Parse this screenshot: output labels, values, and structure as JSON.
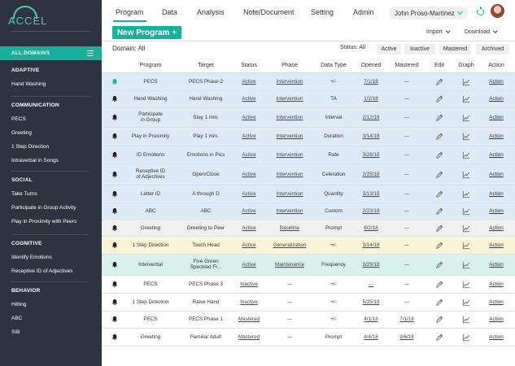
{
  "logo": {
    "text": "ACCEL"
  },
  "sidebar": {
    "all_domains": "ALL DOMAINS",
    "sections": [
      {
        "title": "ADAPTIVE",
        "items": [
          "Hand Washing"
        ]
      },
      {
        "title": "COMMUNICATION",
        "items": [
          "PECS",
          "Greeting",
          "1 Step Direction",
          "Intraverbal in Songs"
        ]
      },
      {
        "title": "SOCIAL",
        "items": [
          "Take Turns",
          "Participate in Group Activity",
          "Play in Proximity with Peers"
        ]
      },
      {
        "title": "COGNITIVE",
        "items": [
          "Identify Emotions",
          "Receptive ID of Adjectives"
        ]
      },
      {
        "title": "BEHAVIOR",
        "items": [
          "Hitting",
          "ABC",
          "SIB"
        ]
      }
    ]
  },
  "nav": {
    "tabs": [
      "Program",
      "Data",
      "Analysis",
      "Note/Document",
      "Setting",
      "Admin"
    ],
    "active_tab": "Program",
    "user_name": "John Proso-Martinez"
  },
  "actions": {
    "new_program": "New Program +",
    "import": "Import",
    "download": "Download"
  },
  "filters": {
    "domain_label": "Domain: All",
    "status_label": "Status: All",
    "buttons": [
      "Active",
      "Inactive",
      "Mastered",
      "Archived"
    ]
  },
  "table": {
    "headers": [
      "Program",
      "Target",
      "Status",
      "Phase",
      "Data Type",
      "Opened",
      "Mastered",
      "Edit",
      "Graph",
      "Action"
    ],
    "rows": [
      {
        "bg": "#dcebf7",
        "bell_color": "#17b09b",
        "program": "PECS",
        "target": "PECS Phase 2",
        "status": "Active",
        "phase": "Intervention",
        "datatype": "+/-",
        "opened": "7/1/18",
        "mastered": "---",
        "action": "Action"
      },
      {
        "bg": "#dcebf7",
        "bell_color": "#222222",
        "program": "Hand Washing",
        "target": "Hand Washing",
        "status": "Active",
        "phase": "Intervention",
        "datatype": "TA",
        "opened": "1/2/18",
        "mastered": "---",
        "action": "Action"
      },
      {
        "bg": "#dcebf7",
        "bell_color": "#222222",
        "program": "Participate\nin Group",
        "target": "Stay 1 min.",
        "status": "Active",
        "phase": "Intervention",
        "datatype": "Interval",
        "opened": "2/12/18",
        "mastered": "---",
        "action": "Action"
      },
      {
        "bg": "#dcebf7",
        "bell_color": "#222222",
        "program": "Play in Proximity",
        "target": "Play 1 min.",
        "status": "Active",
        "phase": "Intervention",
        "datatype": "Duration",
        "opened": "3/14/18",
        "mastered": "---",
        "action": "Action"
      },
      {
        "bg": "#dcebf7",
        "bell_color": "#222222",
        "program": "ID Emotions",
        "target": "Emotions in Pics",
        "status": "Active",
        "phase": "Intervention",
        "datatype": "Rate",
        "opened": "3/28/18",
        "mastered": "---",
        "action": "Action"
      },
      {
        "bg": "#dcebf7",
        "bell_color": "#222222",
        "program": "Receptive ID\nof Adjectives",
        "target": "Open/Close",
        "status": "Active",
        "phase": "Intervention",
        "datatype": "Celeration",
        "opened": "2/25/18",
        "mastered": "---",
        "action": "Action"
      },
      {
        "bg": "#dcebf7",
        "bell_color": "#222222",
        "program": "Letter ID",
        "target": "A through D",
        "status": "Active",
        "phase": "Intervention",
        "datatype": "Quantity",
        "opened": "3/13/18",
        "mastered": "---",
        "action": "Action"
      },
      {
        "bg": "#dcebf7",
        "bell_color": "#222222",
        "program": "ABC",
        "target": "ABC",
        "status": "Active",
        "phase": "Intervention",
        "datatype": "Custom",
        "opened": "2/23/18",
        "mastered": "---",
        "action": "Action"
      },
      {
        "bg": "#f0f0f0",
        "bell_color": "#222222",
        "program": "Greeting",
        "target": "Greeting to Peer",
        "status": "Active",
        "phase": "Baseline",
        "datatype": "Prompt",
        "opened": "6/2/18",
        "mastered": "---",
        "action": "Action"
      },
      {
        "bg": "#faf5d7",
        "bell_color": "#222222",
        "program": "1 Step Direction",
        "target": "Touch Head",
        "status": "Active",
        "phase": "Generalization",
        "datatype": "+/-",
        "opened": "3/14/18",
        "mastered": "---",
        "action": "Action"
      },
      {
        "bg": "#d6f2ea",
        "bell_color": "#222222",
        "program": "Interverbal",
        "target": "Five Green\nSpeckled Fr...",
        "status": "Active",
        "phase": "Maintenance",
        "datatype": "Frequency",
        "opened": "3/29/18",
        "mastered": "---",
        "action": "Action"
      },
      {
        "bg": "#ffffff",
        "bell_color": "#222222",
        "program": "PECS",
        "target": "PECS Phase 3",
        "status": "Inactive",
        "phase": "---",
        "datatype": "+/-",
        "opened": "---",
        "mastered": "---",
        "action": "Action"
      },
      {
        "bg": "#ffffff",
        "bell_color": "#222222",
        "program": "1 Step Direction",
        "target": "Raise Hand",
        "status": "Inactive",
        "phase": "---",
        "datatype": "+/-",
        "opened": "5/25/18",
        "mastered": "---",
        "action": "Action"
      },
      {
        "bg": "#ffffff",
        "bell_color": "#222222",
        "program": "PECS",
        "target": "PECS Phase 1",
        "status": "Mastered",
        "phase": "---",
        "datatype": "+/-",
        "opened": "4/1/18",
        "mastered": "7/1/18",
        "action": "Action"
      },
      {
        "bg": "#ffffff",
        "bell_color": "#222222",
        "program": "Greeting",
        "target": "Familiar Adult",
        "status": "Mastered",
        "phase": "---",
        "datatype": "Prompt",
        "opened": "4/4/18",
        "mastered": "9/6/18",
        "action": "Action"
      }
    ]
  }
}
